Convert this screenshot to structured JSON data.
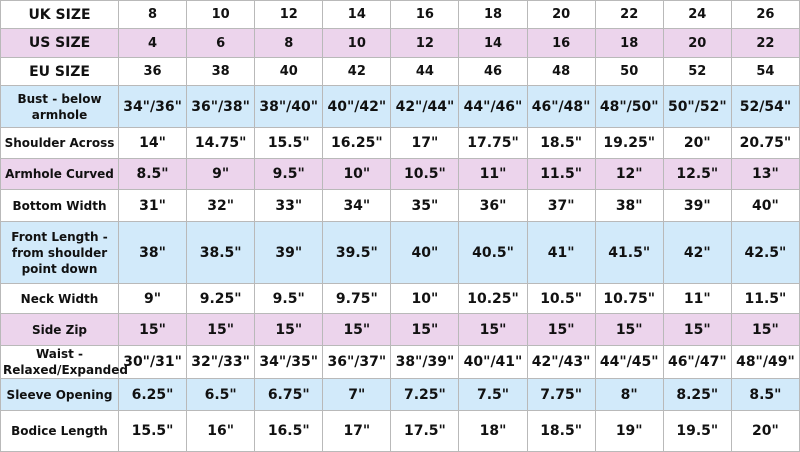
{
  "colors": {
    "pink_row": "#ecd4ec",
    "blue_row": "#d2eafa",
    "white_row": "#ffffff"
  },
  "rows": [
    {
      "label": "UK SIZE",
      "style": "white",
      "values": [
        "8",
        "10",
        "12",
        "14",
        "16",
        "18",
        "20",
        "22",
        "24",
        "26"
      ]
    },
    {
      "label": "US SIZE",
      "style": "pink",
      "values": [
        "4",
        "6",
        "8",
        "10",
        "12",
        "14",
        "16",
        "18",
        "20",
        "22"
      ]
    },
    {
      "label": "EU SIZE",
      "style": "white",
      "values": [
        "36",
        "38",
        "40",
        "42",
        "44",
        "46",
        "48",
        "50",
        "52",
        "54"
      ]
    },
    {
      "label": "Bust - below armhole",
      "style": "blue",
      "values": [
        "34\"/36\"",
        "36\"/38\"",
        "38\"/40\"",
        "40\"/42\"",
        "42\"/44\"",
        "44\"/46\"",
        "46\"/48\"",
        "48\"/50\"",
        "50\"/52\"",
        "52/54\""
      ]
    },
    {
      "label": "Shoulder Across",
      "style": "white",
      "values": [
        "14\"",
        "14.75\"",
        "15.5\"",
        "16.25\"",
        "17\"",
        "17.75\"",
        "18.5\"",
        "19.25\"",
        "20\"",
        "20.75\""
      ]
    },
    {
      "label": "Armhole Curved",
      "style": "pink",
      "values": [
        "8.5\"",
        "9\"",
        "9.5\"",
        "10\"",
        "10.5\"",
        "11\"",
        "11.5\"",
        "12\"",
        "12.5\"",
        "13\""
      ]
    },
    {
      "label": "Bottom Width",
      "style": "white",
      "values": [
        "31\"",
        "32\"",
        "33\"",
        "34\"",
        "35\"",
        "36\"",
        "37\"",
        "38\"",
        "39\"",
        "40\""
      ]
    },
    {
      "label": "Front Length - from shoulder point down",
      "style": "blue",
      "values": [
        "38\"",
        "38.5\"",
        "39\"",
        "39.5\"",
        "40\"",
        "40.5\"",
        "41\"",
        "41.5\"",
        "42\"",
        "42.5\""
      ]
    },
    {
      "label": "Neck Width",
      "style": "white",
      "values": [
        "9\"",
        "9.25\"",
        "9.5\"",
        "9.75\"",
        "10\"",
        "10.25\"",
        "10.5\"",
        "10.75\"",
        "11\"",
        "11.5\""
      ]
    },
    {
      "label": "Side Zip",
      "style": "pink",
      "values": [
        "15\"",
        "15\"",
        "15\"",
        "15\"",
        "15\"",
        "15\"",
        "15\"",
        "15\"",
        "15\"",
        "15\""
      ]
    },
    {
      "label": "Waist - Relaxed/Expanded",
      "style": "white",
      "values": [
        "30\"/31\"",
        "32\"/33\"",
        "34\"/35\"",
        "36\"/37\"",
        "38\"/39\"",
        "40\"/41\"",
        "42\"/43\"",
        "44\"/45\"",
        "46\"/47\"",
        "48\"/49\""
      ]
    },
    {
      "label": "Sleeve Opening",
      "style": "blue",
      "values": [
        "6.25\"",
        "6.5\"",
        "6.75\"",
        "7\"",
        "7.25\"",
        "7.5\"",
        "7.75\"",
        "8\"",
        "8.25\"",
        "8.5\""
      ]
    },
    {
      "label": "Bodice Length",
      "style": "white",
      "values": [
        "15.5\"",
        "16\"",
        "16.5\"",
        "17\"",
        "17.5\"",
        "18\"",
        "18.5\"",
        "19\"",
        "19.5\"",
        "20\""
      ]
    }
  ]
}
